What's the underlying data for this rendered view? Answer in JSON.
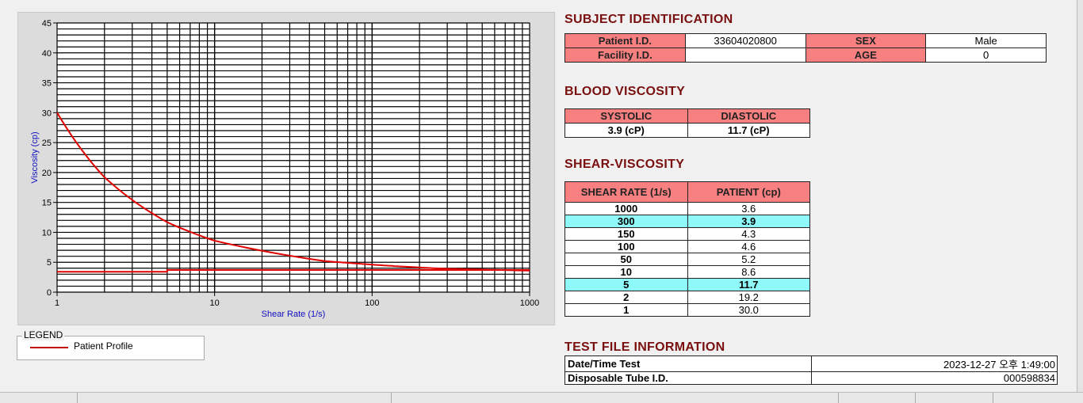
{
  "chart_data": {
    "type": "line",
    "xlabel": "Shear Rate (1/s)",
    "ylabel": "Viscosity (cp)",
    "xscale": "log",
    "xlim": [
      1,
      1000
    ],
    "ylim": [
      0,
      45
    ],
    "grid": true,
    "x_ticks": [
      "1",
      "10",
      "100",
      "1000"
    ],
    "y_ticks": [
      "0",
      "5",
      "10",
      "15",
      "20",
      "25",
      "30",
      "35",
      "40",
      "45"
    ],
    "series": [
      {
        "name": "Patient Profile",
        "color": "#e00000",
        "x": [
          1,
          2,
          5,
          10,
          50,
          100,
          150,
          300,
          1000
        ],
        "y": [
          30.0,
          19.2,
          11.7,
          8.6,
          5.2,
          4.6,
          4.3,
          3.9,
          3.6
        ]
      },
      {
        "color": "#e00000",
        "x": [
          1,
          5,
          5,
          1000
        ],
        "y": [
          3.4,
          3.4,
          3.7,
          3.7
        ]
      }
    ],
    "legend": "bottom-left"
  },
  "legend": {
    "title": "LEGEND",
    "items": [
      "Patient Profile"
    ]
  },
  "subject": {
    "title": "SUBJECT IDENTIFICATION",
    "patient_id_label": "Patient I.D.",
    "patient_id": "33604020800",
    "sex_label": "SEX",
    "sex": "Male",
    "facility_id_label": "Facility I.D.",
    "facility_id": "",
    "age_label": "AGE",
    "age": "0"
  },
  "blood": {
    "title": "BLOOD VISCOSITY",
    "systolic_label": "SYSTOLIC",
    "diastolic_label": "DIASTOLIC",
    "systolic": "3.9 (cP)",
    "diastolic": "11.7 (cP)"
  },
  "shear": {
    "title": "SHEAR-VISCOSITY",
    "headers": [
      "SHEAR RATE (1/s)",
      "PATIENT (cp)"
    ],
    "rows": [
      {
        "rate": "1000",
        "val": "3.6",
        "hl": false
      },
      {
        "rate": "300",
        "val": "3.9",
        "hl": true
      },
      {
        "rate": "150",
        "val": "4.3",
        "hl": false
      },
      {
        "rate": "100",
        "val": "4.6",
        "hl": false
      },
      {
        "rate": "50",
        "val": "5.2",
        "hl": false
      },
      {
        "rate": "10",
        "val": "8.6",
        "hl": false
      },
      {
        "rate": "5",
        "val": "11.7",
        "hl": true
      },
      {
        "rate": "2",
        "val": "19.2",
        "hl": false
      },
      {
        "rate": "1",
        "val": "30.0",
        "hl": false
      }
    ]
  },
  "testfile": {
    "title": "TEST FILE INFORMATION",
    "date_label": "Date/Time Test",
    "date": "2023-12-27  오후 1:49:00",
    "tube_label": "Disposable Tube I.D.",
    "tube": "000598834"
  }
}
